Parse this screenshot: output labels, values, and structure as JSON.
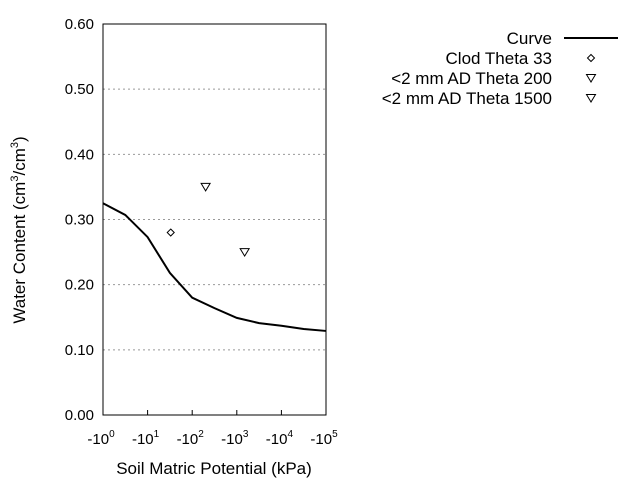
{
  "chart_data": {
    "type": "scatter",
    "xlabel": "Soil Matric Potential (kPa)",
    "ylabel": "Water Content (cm³/cm³)",
    "ylabel_parts": [
      "Water Content (cm",
      "3",
      "/cm",
      "3",
      ")"
    ],
    "x_scale": "log (negative)",
    "xlim": [
      1,
      100000
    ],
    "ylim": [
      0,
      0.6
    ],
    "x_ticks": [
      {
        "base": "-10",
        "exp": "0",
        "value": 1
      },
      {
        "base": "-10",
        "exp": "1",
        "value": 10
      },
      {
        "base": "-10",
        "exp": "2",
        "value": 100
      },
      {
        "base": "-10",
        "exp": "3",
        "value": 1000
      },
      {
        "base": "-10",
        "exp": "4",
        "value": 10000
      },
      {
        "base": "-10",
        "exp": "5",
        "value": 100000
      }
    ],
    "y_ticks": [
      "0.00",
      "0.10",
      "0.20",
      "0.30",
      "0.40",
      "0.50",
      "0.60"
    ],
    "grid": "horizontal dotted",
    "legend_placement": "right, outside",
    "series": [
      {
        "name": "Curve",
        "kind": "line",
        "color": "#000000",
        "x": [
          1,
          3.16,
          10,
          31.6,
          100,
          316,
          1000,
          3162,
          10000,
          31623,
          100000
        ],
        "y": [
          0.325,
          0.307,
          0.273,
          0.218,
          0.18,
          0.164,
          0.149,
          0.141,
          0.137,
          0.132,
          0.129
        ]
      },
      {
        "name": "Clod Theta 33",
        "kind": "marker",
        "marker": "diamond",
        "x": [
          33
        ],
        "y": [
          0.28
        ]
      },
      {
        "name": "<2 mm AD Theta 200",
        "kind": "marker",
        "marker": "triangle-down",
        "x": [
          200
        ],
        "y": [
          0.35
        ]
      },
      {
        "name": "<2 mm AD Theta 1500",
        "kind": "marker",
        "marker": "triangle-down",
        "x": [
          1500
        ],
        "y": [
          0.25
        ]
      }
    ]
  }
}
